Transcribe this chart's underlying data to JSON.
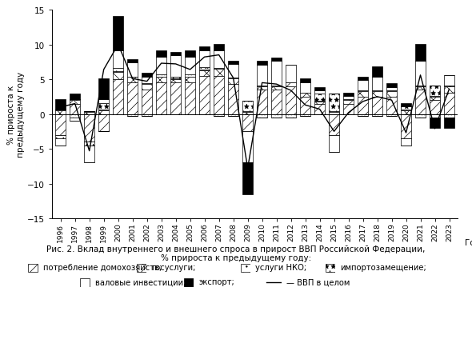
{
  "years": [
    1996,
    1997,
    1998,
    1999,
    2000,
    2001,
    2002,
    2003,
    2004,
    2005,
    2006,
    2007,
    2008,
    2009,
    2010,
    2011,
    2012,
    2013,
    2014,
    2015,
    2016,
    2017,
    2018,
    2019,
    2020,
    2021,
    2022,
    2023
  ],
  "consumption_hh": [
    -3.0,
    1.5,
    -4.0,
    -2.5,
    5.0,
    4.5,
    3.5,
    4.5,
    4.5,
    4.5,
    5.5,
    5.5,
    4.3,
    -2.5,
    3.5,
    3.5,
    4.0,
    2.5,
    1.5,
    -3.0,
    1.5,
    2.5,
    2.5,
    2.5,
    -3.5,
    3.5,
    2.0,
    3.0
  ],
  "gov_services": [
    0.5,
    0.5,
    0.3,
    0.5,
    1.0,
    0.8,
    0.8,
    0.8,
    0.5,
    0.8,
    0.8,
    1.0,
    0.8,
    0.3,
    0.5,
    0.5,
    0.5,
    0.5,
    0.3,
    0.3,
    0.5,
    0.8,
    0.8,
    0.8,
    0.5,
    0.5,
    0.5,
    1.0
  ],
  "nko_services": [
    0.1,
    0.1,
    0.1,
    0.1,
    0.1,
    0.1,
    0.1,
    0.1,
    0.1,
    0.1,
    0.1,
    0.1,
    0.1,
    0.1,
    0.1,
    0.1,
    0.1,
    0.1,
    0.1,
    0.1,
    0.1,
    0.1,
    0.1,
    0.1,
    0.1,
    0.1,
    0.1,
    0.1
  ],
  "import_sub": [
    -0.5,
    -0.5,
    -0.5,
    1.0,
    0.5,
    -0.3,
    -0.3,
    0.3,
    0.3,
    0.3,
    0.3,
    -0.3,
    -0.3,
    1.5,
    -0.5,
    -0.5,
    -0.5,
    -0.3,
    1.0,
    2.5,
    0.0,
    -0.3,
    -0.3,
    -0.3,
    0.5,
    -0.5,
    1.5,
    -0.5
  ],
  "gross_inv": [
    -1.0,
    -0.5,
    -2.5,
    0.5,
    2.5,
    2.0,
    1.0,
    2.5,
    3.0,
    2.5,
    2.5,
    2.5,
    2.0,
    -4.5,
    3.0,
    3.5,
    2.5,
    1.5,
    0.5,
    -2.5,
    0.5,
    1.5,
    2.0,
    0.5,
    -1.0,
    3.5,
    -0.5,
    1.5
  ],
  "export": [
    1.5,
    0.8,
    0.0,
    3.0,
    5.0,
    0.5,
    0.5,
    1.0,
    0.5,
    1.0,
    0.5,
    1.0,
    0.5,
    -4.5,
    0.5,
    0.5,
    0.0,
    0.5,
    0.5,
    0.0,
    0.5,
    0.5,
    1.5,
    0.5,
    0.5,
    2.5,
    -1.5,
    -1.5
  ],
  "gdp_line": [
    1.0,
    1.5,
    -5.3,
    6.4,
    10.0,
    5.1,
    4.7,
    7.3,
    7.2,
    6.4,
    8.2,
    8.5,
    5.2,
    -7.8,
    4.5,
    4.3,
    3.4,
    1.3,
    0.7,
    -2.5,
    0.2,
    1.8,
    2.5,
    2.0,
    -2.7,
    5.6,
    -2.1,
    3.6
  ],
  "caption_line1": "Рис. 2. Вклад внутреннего и внешнего спроса в прирост ВВП Российской Федерации,",
  "caption_line2": "% прироста к предыдущему году:",
  "legend_hh": "потребление домохозяйств;",
  "legend_gov": "госуслуги;",
  "legend_nko": "услуги НКО;",
  "legend_imp": "импортозамещение;",
  "legend_inv": "валовые инвестиции;",
  "legend_exp": "экспорт;",
  "legend_gdp": "ВВП в целом",
  "ylabel": "% прироста к\nпредыдущему году",
  "xlabel": "Год",
  "ylim": [
    -15,
    15
  ],
  "yticks": [
    -15,
    -10,
    -5,
    0,
    5,
    10,
    15
  ],
  "bar_width": 0.75
}
